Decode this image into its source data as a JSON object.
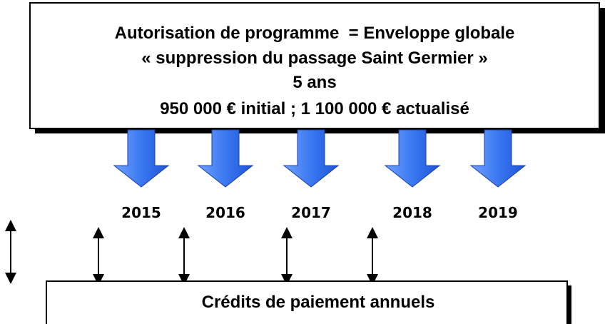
{
  "top_box": {
    "lines": [
      "Autorisation de programme  = Enveloppe globale",
      "« suppression du passage Saint Germier »",
      "5 ans",
      "950 000 € initial ; 1 100 000 € actualisé"
    ]
  },
  "years": [
    "2015",
    "2016",
    "2017",
    "2018",
    "2019"
  ],
  "bottom_box": {
    "label": "Crédits de paiement annuels"
  }
}
